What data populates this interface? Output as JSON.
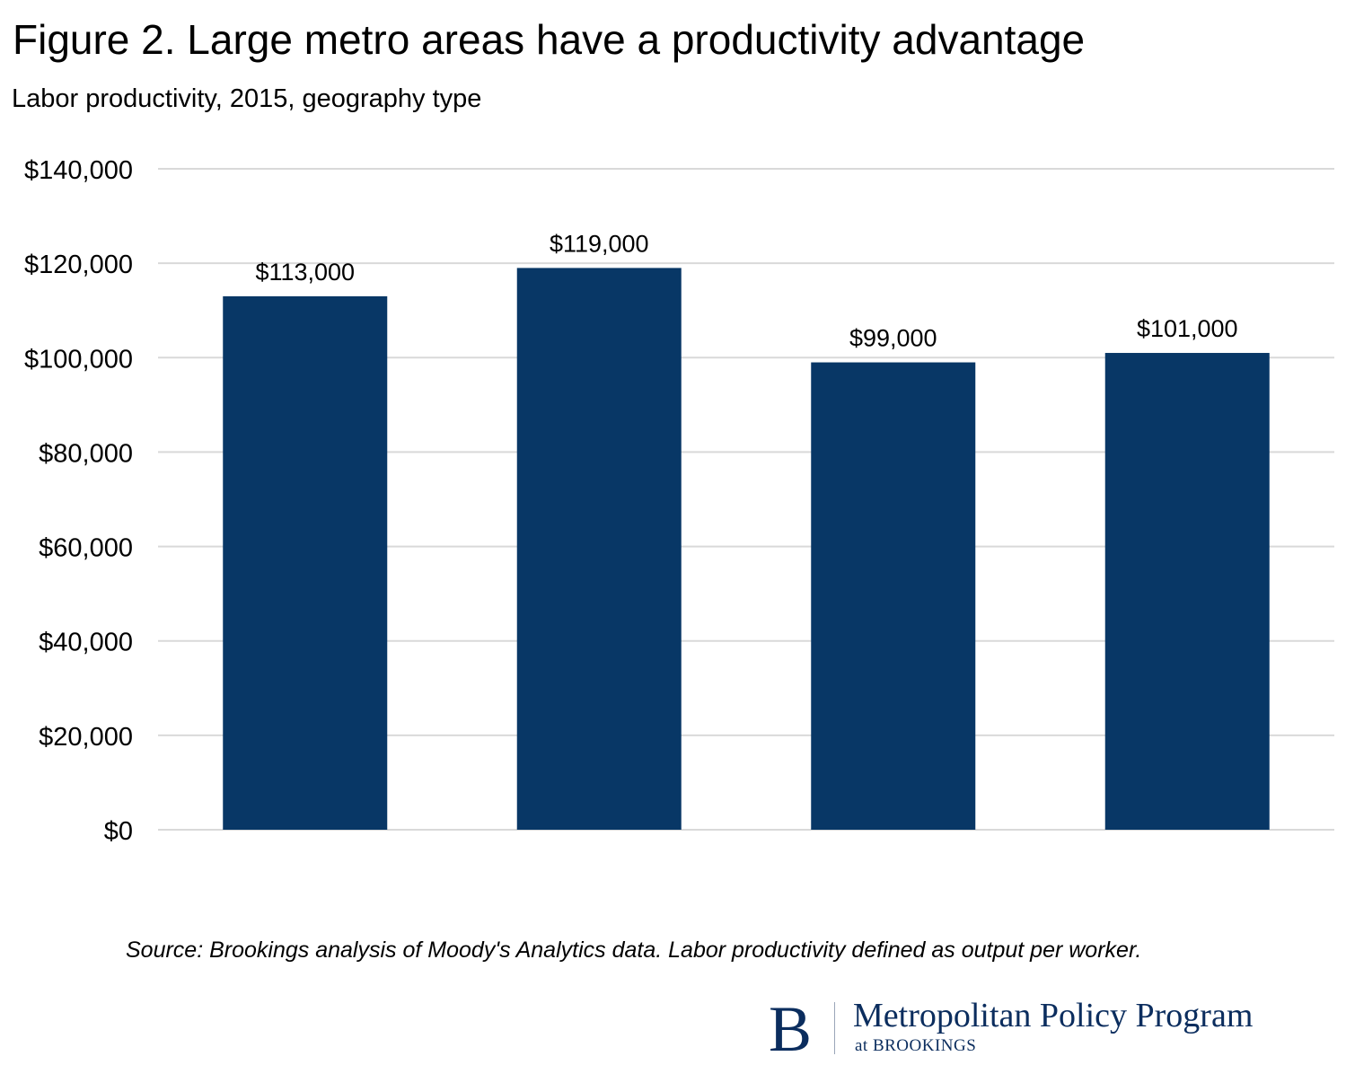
{
  "chart_data": {
    "type": "bar",
    "title": "Figure 2. Large metro areas have a productivity advantage",
    "subtitle": "Labor productivity, 2015, geography type",
    "categories": [
      "",
      "",
      "",
      ""
    ],
    "values": [
      113000,
      119000,
      99000,
      101000
    ],
    "data_labels": [
      "$113,000",
      "$119,000",
      "$99,000",
      "$101,000"
    ],
    "ylim": [
      0,
      140000
    ],
    "yticks": [
      0,
      20000,
      40000,
      60000,
      80000,
      100000,
      120000,
      140000
    ],
    "ytick_labels": [
      "$0",
      "$20,000",
      "$40,000",
      "$60,000",
      "$80,000",
      "$100,000",
      "$120,000",
      "$140,000"
    ],
    "grid": true,
    "bar_color": "#083766",
    "grid_color": "#d9d9d9"
  },
  "source": "Source: Brookings analysis of Moody's Analytics data. Labor productivity defined as output per worker.",
  "logo": {
    "letter": "B",
    "name": "Metropolitan Policy Program",
    "sub": "at BROOKINGS",
    "color": "#0b2d5e"
  }
}
